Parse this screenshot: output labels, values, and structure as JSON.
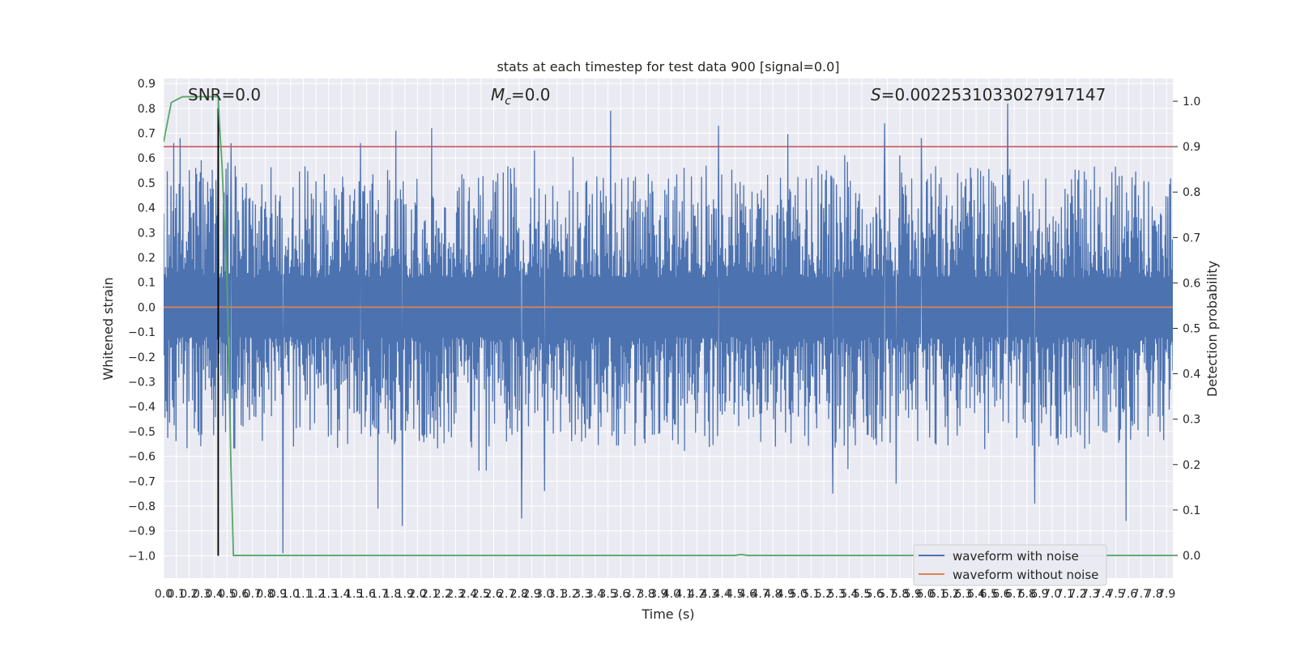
{
  "chart_data": {
    "type": "line",
    "title": "stats at each timestep for test data 900 [signal=0.0]",
    "xlabel": "Time (s)",
    "ylabel": "Whitened strain",
    "y2label": "Detection probability",
    "xlim": [
      0.0,
      7.95
    ],
    "ylim": [
      -1.09,
      0.92
    ],
    "y2lim": [
      -0.05,
      1.05
    ],
    "x_ticks": [
      0.0,
      0.1,
      0.2,
      0.3,
      0.4,
      0.5,
      0.6,
      0.7,
      0.8,
      0.9,
      1.0,
      1.1,
      1.2,
      1.3,
      1.4,
      1.5,
      1.6,
      1.7,
      1.8,
      1.9,
      2.0,
      2.1,
      2.2,
      2.3,
      2.4,
      2.5,
      2.6,
      2.7,
      2.8,
      2.9,
      3.0,
      3.1,
      3.2,
      3.3,
      3.4,
      3.5,
      3.6,
      3.7,
      3.8,
      3.9,
      4.0,
      4.1,
      4.2,
      4.3,
      4.4,
      4.5,
      4.6,
      4.7,
      4.8,
      4.9,
      5.0,
      5.1,
      5.2,
      5.3,
      5.4,
      5.5,
      5.6,
      5.7,
      5.8,
      5.9,
      6.0,
      6.1,
      6.2,
      6.3,
      6.4,
      6.5,
      6.6,
      6.7,
      6.8,
      6.9,
      7.0,
      7.1,
      7.2,
      7.3,
      7.4,
      7.5,
      7.6,
      7.7,
      7.8,
      7.9
    ],
    "y_ticks": [
      -1.0,
      -0.9,
      -0.8,
      -0.7,
      -0.6,
      -0.5,
      -0.4,
      -0.3,
      -0.2,
      -0.1,
      0.0,
      0.1,
      0.2,
      0.3,
      0.4,
      0.5,
      0.6,
      0.7,
      0.8,
      0.9
    ],
    "y_tick_labels": [
      "−1.0",
      "−0.9",
      "−0.8",
      "−0.7",
      "−0.6",
      "−0.5",
      "−0.4",
      "−0.3",
      "−0.2",
      "−0.1",
      "0.0",
      "0.1",
      "0.2",
      "0.3",
      "0.4",
      "0.5",
      "0.6",
      "0.7",
      "0.8",
      "0.9"
    ],
    "y2_ticks": [
      0.0,
      0.1,
      0.2,
      0.3,
      0.4,
      0.5,
      0.6,
      0.7,
      0.8,
      0.9,
      1.0
    ],
    "y2_tick_labels": [
      "0.0",
      "0.1",
      "0.2",
      "0.3",
      "0.4",
      "0.5",
      "0.6",
      "0.7",
      "0.8",
      "0.9",
      "1.0"
    ],
    "grid": true,
    "legend_position": "bottom-right",
    "annotations": {
      "snr": "SNR=0.0",
      "mc_symbol": "M",
      "mc_sub": "c",
      "mc_value": "=0.0",
      "s_symbol": "S",
      "s_value": "=0.002253103302791714​7"
    },
    "series": [
      {
        "name": "waveform with noise",
        "color": "#4c72b0",
        "axis": "left",
        "noise_envelope_typical": 0.45,
        "spikes": [
          {
            "x": 0.08,
            "y": 0.66
          },
          {
            "x": 0.13,
            "y": 0.68
          },
          {
            "x": 0.43,
            "y": 0.84
          },
          {
            "x": 0.53,
            "y": 0.66
          },
          {
            "x": 1.55,
            "y": 0.66
          },
          {
            "x": 1.83,
            "y": 0.71
          },
          {
            "x": 2.92,
            "y": 0.63
          },
          {
            "x": 3.52,
            "y": 0.79
          },
          {
            "x": 4.37,
            "y": 0.73
          },
          {
            "x": 5.68,
            "y": 0.74
          },
          {
            "x": 5.97,
            "y": 0.68
          },
          {
            "x": 6.65,
            "y": 0.82
          },
          {
            "x": 0.94,
            "y": -0.99
          },
          {
            "x": 1.69,
            "y": -0.81
          },
          {
            "x": 1.88,
            "y": -0.88
          },
          {
            "x": 2.82,
            "y": -0.85
          },
          {
            "x": 3.0,
            "y": -0.74
          },
          {
            "x": 5.27,
            "y": -0.75
          },
          {
            "x": 5.77,
            "y": -0.71
          },
          {
            "x": 6.86,
            "y": -0.79
          },
          {
            "x": 7.58,
            "y": -0.86
          }
        ]
      },
      {
        "name": "waveform without noise",
        "color": "#dd8452",
        "axis": "left",
        "x": [
          0.0,
          7.95
        ],
        "y": [
          0.0,
          0.0
        ]
      },
      {
        "color": "#55a868",
        "axis": "right",
        "x": [
          0.0,
          0.06,
          0.1,
          0.15,
          0.2,
          0.3,
          0.38,
          0.43,
          0.44,
          0.46,
          0.5,
          0.53,
          0.55,
          0.6,
          4.5,
          4.55,
          4.6,
          4.65,
          7.95
        ],
        "y": [
          0.91,
          0.997,
          1.003,
          1.01,
          1.01,
          1.01,
          1.01,
          1.01,
          0.95,
          0.86,
          0.6,
          0.2,
          0.0,
          0.0,
          0.0,
          0.002,
          0.0,
          0.0,
          0.0
        ]
      }
    ],
    "threshold_line": {
      "color": "#c44e52",
      "axis": "right",
      "y": 0.9
    },
    "marker_line": {
      "color": "#000000",
      "x": 0.43,
      "y_range": [
        -1.0,
        0.8
      ]
    }
  }
}
